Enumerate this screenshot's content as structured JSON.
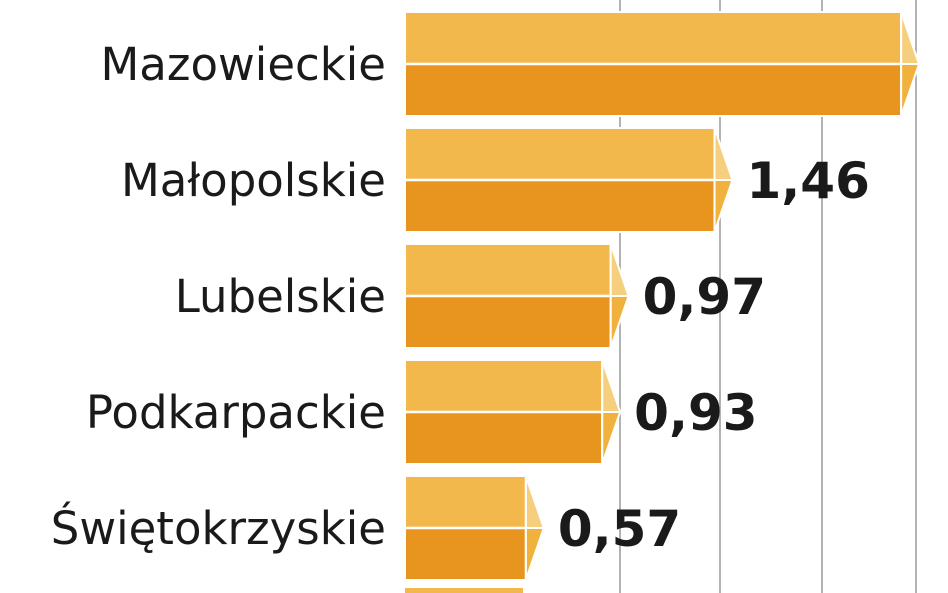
{
  "chart_data": {
    "type": "bar",
    "orientation": "horizontal",
    "categories": [
      "Mazowieckie",
      "Małopolskie",
      "Lubelskie",
      "Podkarpackie",
      "Świętokrzyskie"
    ],
    "values": [
      2.34,
      1.46,
      0.97,
      0.93,
      0.57
    ],
    "value_labels": [
      "",
      "1,46",
      "0,97",
      "0,93",
      "0,57"
    ],
    "partial_bar_below": true,
    "grid": true,
    "colors": {
      "bar_top": "#F2B84B",
      "bar_bottom": "#E8951F",
      "cap_top": "#F6CF7E",
      "cap_bottom": "#F0B23C"
    }
  }
}
